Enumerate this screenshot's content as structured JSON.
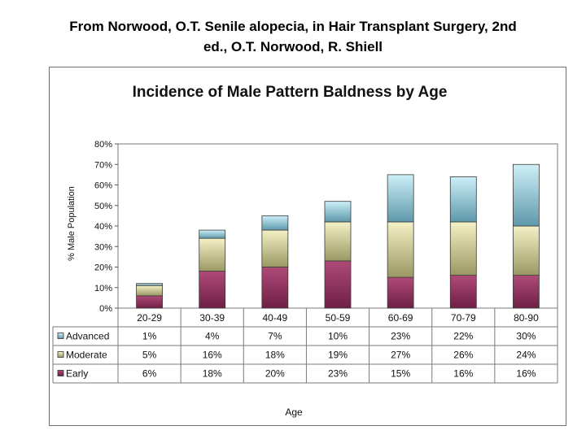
{
  "caption": {
    "line1": "From Norwood, O.T. Senile alopecia, in Hair Transplant Surgery, 2nd",
    "line2": "ed., O.T. Norwood, R. Shiell"
  },
  "chart_data": {
    "type": "bar",
    "stacked": true,
    "title": "Incidence of Male Pattern Baldness by Age",
    "xlabel": "Age",
    "ylabel": "% Male Population",
    "ylim": [
      0,
      80
    ],
    "yticks": [
      "0%",
      "10%",
      "20%",
      "30%",
      "40%",
      "50%",
      "60%",
      "70%",
      "80%"
    ],
    "grid": false,
    "legend": "data-table rows",
    "categories": [
      "20-29",
      "30-39",
      "40-49",
      "50-59",
      "60-69",
      "70-79",
      "80-90"
    ],
    "series": [
      {
        "name": "Early",
        "values": [
          6,
          18,
          20,
          23,
          15,
          16,
          16
        ],
        "labels": [
          "6%",
          "18%",
          "20%",
          "23%",
          "15%",
          "16%",
          "16%"
        ],
        "color": "#8c2d5a"
      },
      {
        "name": "Moderate",
        "values": [
          5,
          16,
          18,
          19,
          27,
          26,
          24
        ],
        "labels": [
          "5%",
          "16%",
          "18%",
          "19%",
          "27%",
          "26%",
          "24%"
        ],
        "color": "#c8c48c"
      },
      {
        "name": "Advanced",
        "values": [
          1,
          4,
          7,
          10,
          23,
          22,
          30
        ],
        "labels": [
          "1%",
          "4%",
          "7%",
          "10%",
          "23%",
          "22%",
          "30%"
        ],
        "color": "#8ec8d8"
      }
    ],
    "table_rows": [
      "Advanced",
      "Moderate",
      "Early"
    ]
  }
}
